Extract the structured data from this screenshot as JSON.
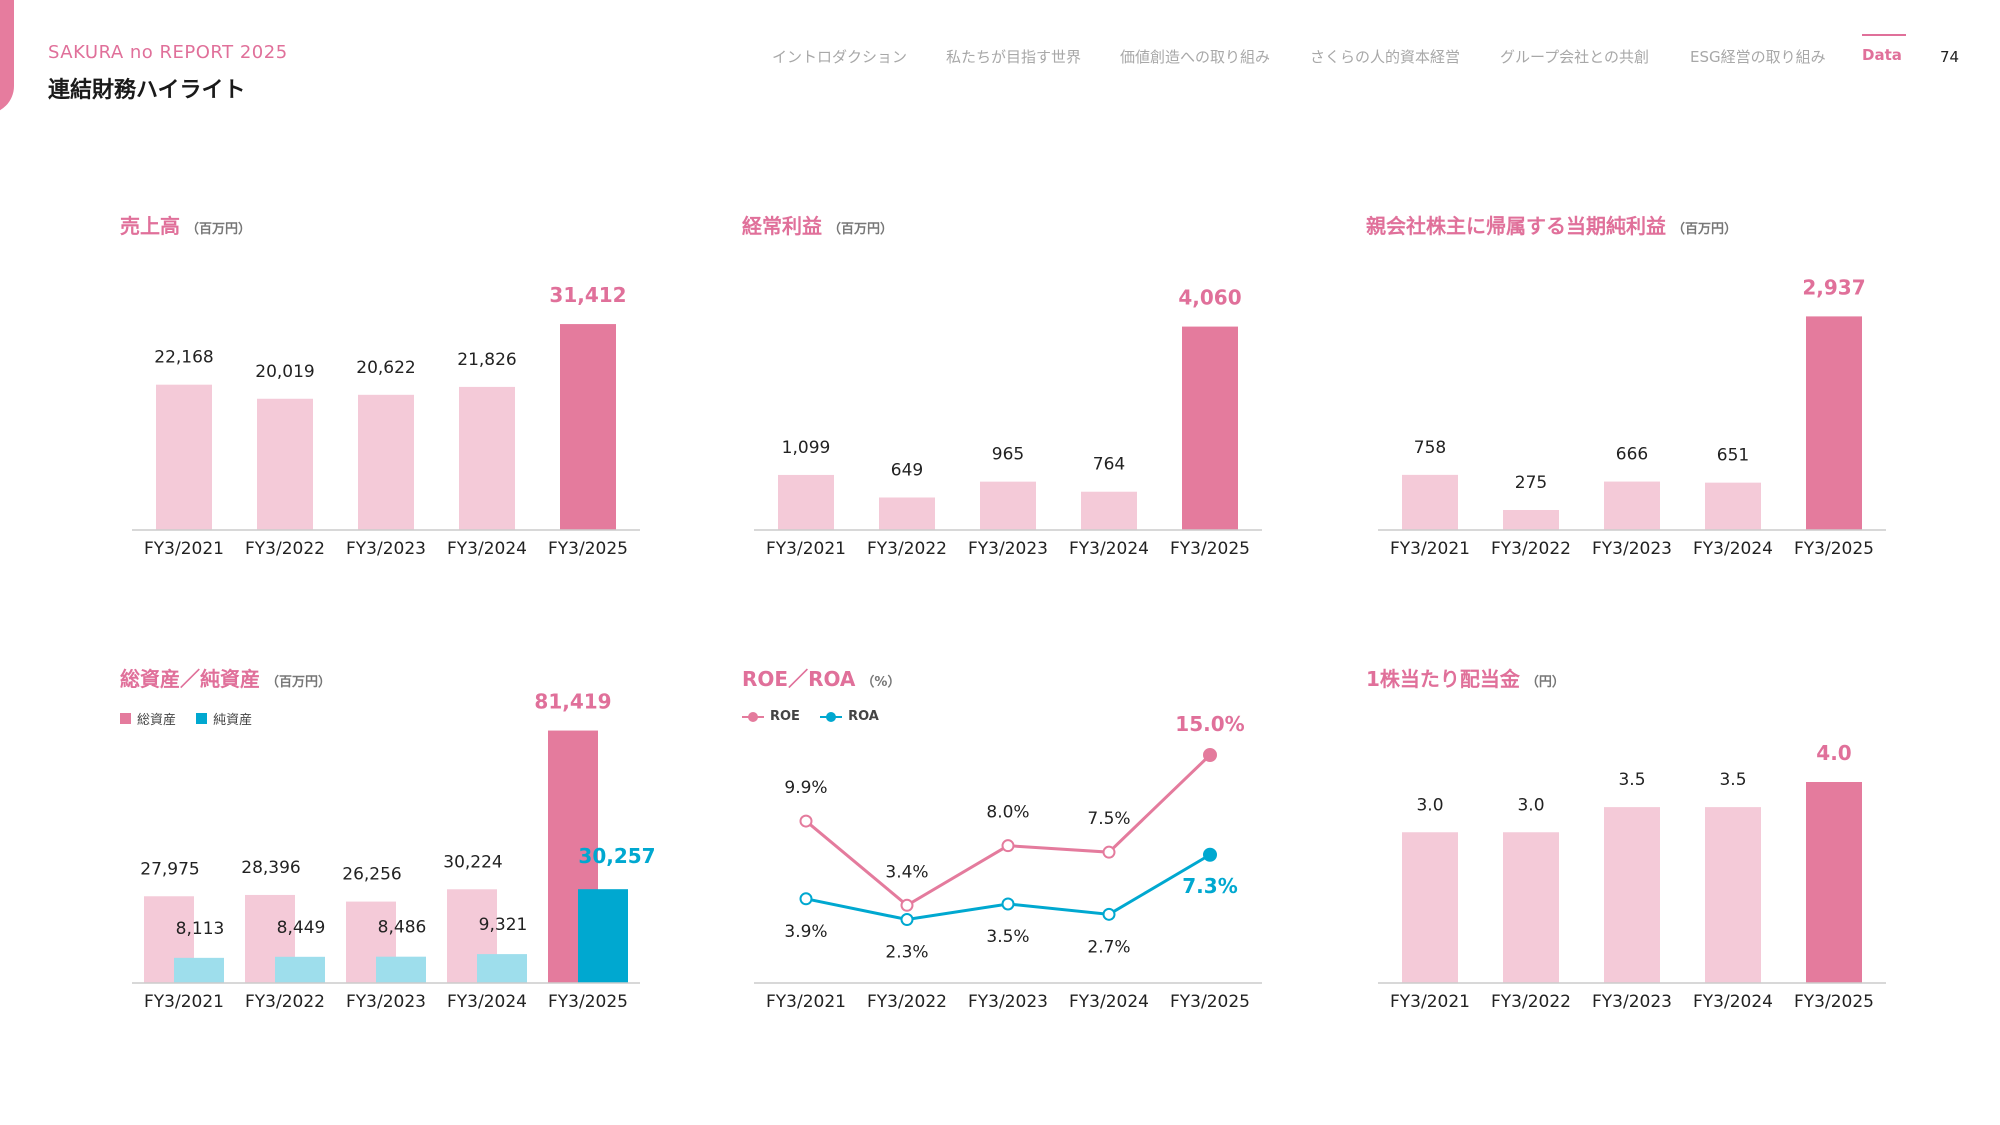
{
  "header": {
    "report_name": "SAKURA no REPORT 2025",
    "page_title": "連結財務ハイライト",
    "page_number": "74",
    "nav_items": [
      {
        "label": "イントロダクション",
        "active": false
      },
      {
        "label": "私たちが目指す世界",
        "active": false
      },
      {
        "label": "価値創造への取り組み",
        "active": false
      },
      {
        "label": "さくらの人的資本経営",
        "active": false
      },
      {
        "label": "グループ会社との共創",
        "active": false
      },
      {
        "label": "ESG経営の取り組み",
        "active": false
      },
      {
        "label": "Data",
        "active": true
      }
    ]
  },
  "colors": {
    "pink_light": "#f4cad8",
    "pink_dark": "#e47b9d",
    "pink_text": "#e0709a",
    "blue_light": "#9edeec",
    "blue_dark": "#00a8d0",
    "axis": "#cccccc",
    "label": "#222222"
  },
  "chart_data": [
    {
      "id": "sales",
      "type": "bar",
      "title": "売上高",
      "unit": "（百万円）",
      "categories": [
        "FY3/2021",
        "FY3/2022",
        "FY3/2023",
        "FY3/2024",
        "FY3/2025"
      ],
      "values": [
        22168,
        20019,
        20622,
        21826,
        31412
      ],
      "labels": [
        "22,168",
        "20,019",
        "20,622",
        "21,826",
        "31,412"
      ],
      "ylim": [
        0,
        36000
      ]
    },
    {
      "id": "ordinary-profit",
      "type": "bar",
      "title": "経常利益",
      "unit": "（百万円）",
      "categories": [
        "FY3/2021",
        "FY3/2022",
        "FY3/2023",
        "FY3/2024",
        "FY3/2025"
      ],
      "values": [
        1099,
        649,
        965,
        764,
        4060
      ],
      "labels": [
        "1,099",
        "649",
        "965",
        "764",
        "4,060"
      ],
      "ylim": [
        0,
        4950
      ]
    },
    {
      "id": "net-income",
      "type": "bar",
      "title": "親会社株主に帰属する当期純利益",
      "unit": "（百万円）",
      "categories": [
        "FY3/2021",
        "FY3/2022",
        "FY3/2023",
        "FY3/2024",
        "FY3/2025"
      ],
      "values": [
        758,
        275,
        666,
        651,
        2937
      ],
      "labels": [
        "758",
        "275",
        "666",
        "651",
        "2,937"
      ],
      "ylim": [
        0,
        3300
      ]
    },
    {
      "id": "assets",
      "type": "bar",
      "title": "総資産／純資産",
      "unit": "（百万円）",
      "categories": [
        "FY3/2021",
        "FY3/2022",
        "FY3/2023",
        "FY3/2024",
        "FY3/2025"
      ],
      "series": [
        {
          "name": "総資産",
          "values": [
            27975,
            28396,
            26256,
            30224,
            81419
          ],
          "labels": [
            "27,975",
            "28,396",
            "26,256",
            "30,224",
            "81,419"
          ]
        },
        {
          "name": "純資産",
          "values": [
            8113,
            8449,
            8486,
            9321,
            30257
          ],
          "labels": [
            "8,113",
            "8,449",
            "8,486",
            "9,321",
            "30,257"
          ]
        }
      ],
      "ylim": [
        0,
        84500
      ]
    },
    {
      "id": "roe-roa",
      "type": "line",
      "title": "ROE／ROA",
      "unit": "（%）",
      "categories": [
        "FY3/2021",
        "FY3/2022",
        "FY3/2023",
        "FY3/2024",
        "FY3/2025"
      ],
      "series": [
        {
          "name": "ROE",
          "values": [
            9.9,
            3.4,
            8.0,
            7.5,
            15.0
          ],
          "labels": [
            "9.9%",
            "3.4%",
            "8.0%",
            "7.5%",
            "15.0%"
          ]
        },
        {
          "name": "ROA",
          "values": [
            3.9,
            2.3,
            3.5,
            2.7,
            7.3
          ],
          "labels": [
            "3.9%",
            "2.3%",
            "3.5%",
            "2.7%",
            "7.3%"
          ]
        }
      ],
      "ylim": [
        -2.6,
        15.0
      ]
    },
    {
      "id": "dividend",
      "type": "bar",
      "title": "1株当たり配当金",
      "unit": "（円）",
      "categories": [
        "FY3/2021",
        "FY3/2022",
        "FY3/2023",
        "FY3/2024",
        "FY3/2025"
      ],
      "values": [
        3.0,
        3.0,
        3.5,
        3.5,
        4.0
      ],
      "labels": [
        "3.0",
        "3.0",
        "3.5",
        "3.5",
        "4.0"
      ],
      "ylim": [
        0,
        4.0
      ]
    }
  ]
}
